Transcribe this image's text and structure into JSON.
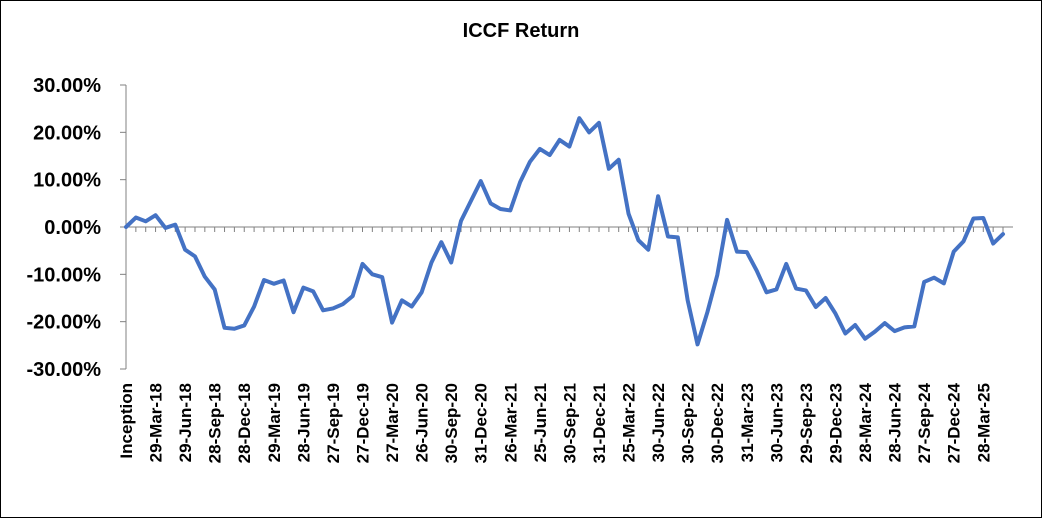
{
  "chart_data": {
    "type": "line",
    "title": "ICCF Return",
    "xlabel": "",
    "ylabel": "",
    "ylim": [
      -30,
      30
    ],
    "y_ticks": [
      30,
      20,
      10,
      0,
      -10,
      -20,
      -30
    ],
    "y_tick_labels": [
      "30.00%",
      "20.00%",
      "10.00%",
      "0.00%",
      "-10.00%",
      "-20.00%",
      "-30.00%"
    ],
    "x_tick_labels": [
      "Inception",
      "29-Mar-18",
      "29-Jun-18",
      "28-Sep-18",
      "28-Dec-18",
      "29-Mar-19",
      "28-Jun-19",
      "27-Sep-19",
      "27-Dec-19",
      "27-Mar-20",
      "26-Jun-20",
      "30-Sep-20",
      "31-Dec-20",
      "26-Mar-21",
      "25-Jun-21",
      "30-Sep-21",
      "31-Dec-21",
      "25-Mar-22",
      "30-Jun-22",
      "30-Sep-22",
      "30-Dec-22",
      "31-Mar-23",
      "30-Jun-23",
      "29-Sep-23",
      "29-Dec-23",
      "28-Mar-24",
      "28-Jun-24",
      "27-Sep-24",
      "27-Dec-24",
      "28-Mar-25"
    ],
    "grid": false,
    "legend": "none",
    "line_color": "#4472C4",
    "series": [
      {
        "values": [
          0.0,
          2.0,
          1.2,
          2.5,
          -0.2,
          0.5,
          -4.8,
          -6.2,
          -10.5,
          -13.2,
          -21.3,
          -21.5,
          -20.8,
          -16.8,
          -11.2,
          -12.0,
          -11.3,
          -18.0,
          -12.8,
          -13.6,
          -17.6,
          -17.2,
          -16.3,
          -14.6,
          -7.8,
          -10.0,
          -10.6,
          -20.2,
          -15.5,
          -16.8,
          -13.8,
          -7.5,
          -3.2,
          -7.5,
          1.3,
          5.5,
          9.7,
          5.0,
          3.8,
          3.5,
          9.5,
          13.8,
          16.5,
          15.2,
          18.4,
          17.0,
          23.0,
          20.0,
          22.0,
          12.3,
          14.2,
          2.8,
          -2.8,
          -4.8,
          6.5,
          -2.0,
          -2.2,
          -15.5,
          -24.8,
          -18.0,
          -10.2,
          1.5,
          -5.2,
          -5.3,
          -9.2,
          -13.8,
          -13.2,
          -7.8,
          -13.0,
          -13.4,
          -16.9,
          -15.0,
          -18.3,
          -22.5,
          -20.7,
          -23.6,
          -22.1,
          -20.3,
          -22.0,
          -21.2,
          -21.0,
          -11.6,
          -10.7,
          -11.9,
          -5.2,
          -3.0,
          1.8,
          1.9,
          -3.5,
          -1.5
        ]
      }
    ]
  }
}
